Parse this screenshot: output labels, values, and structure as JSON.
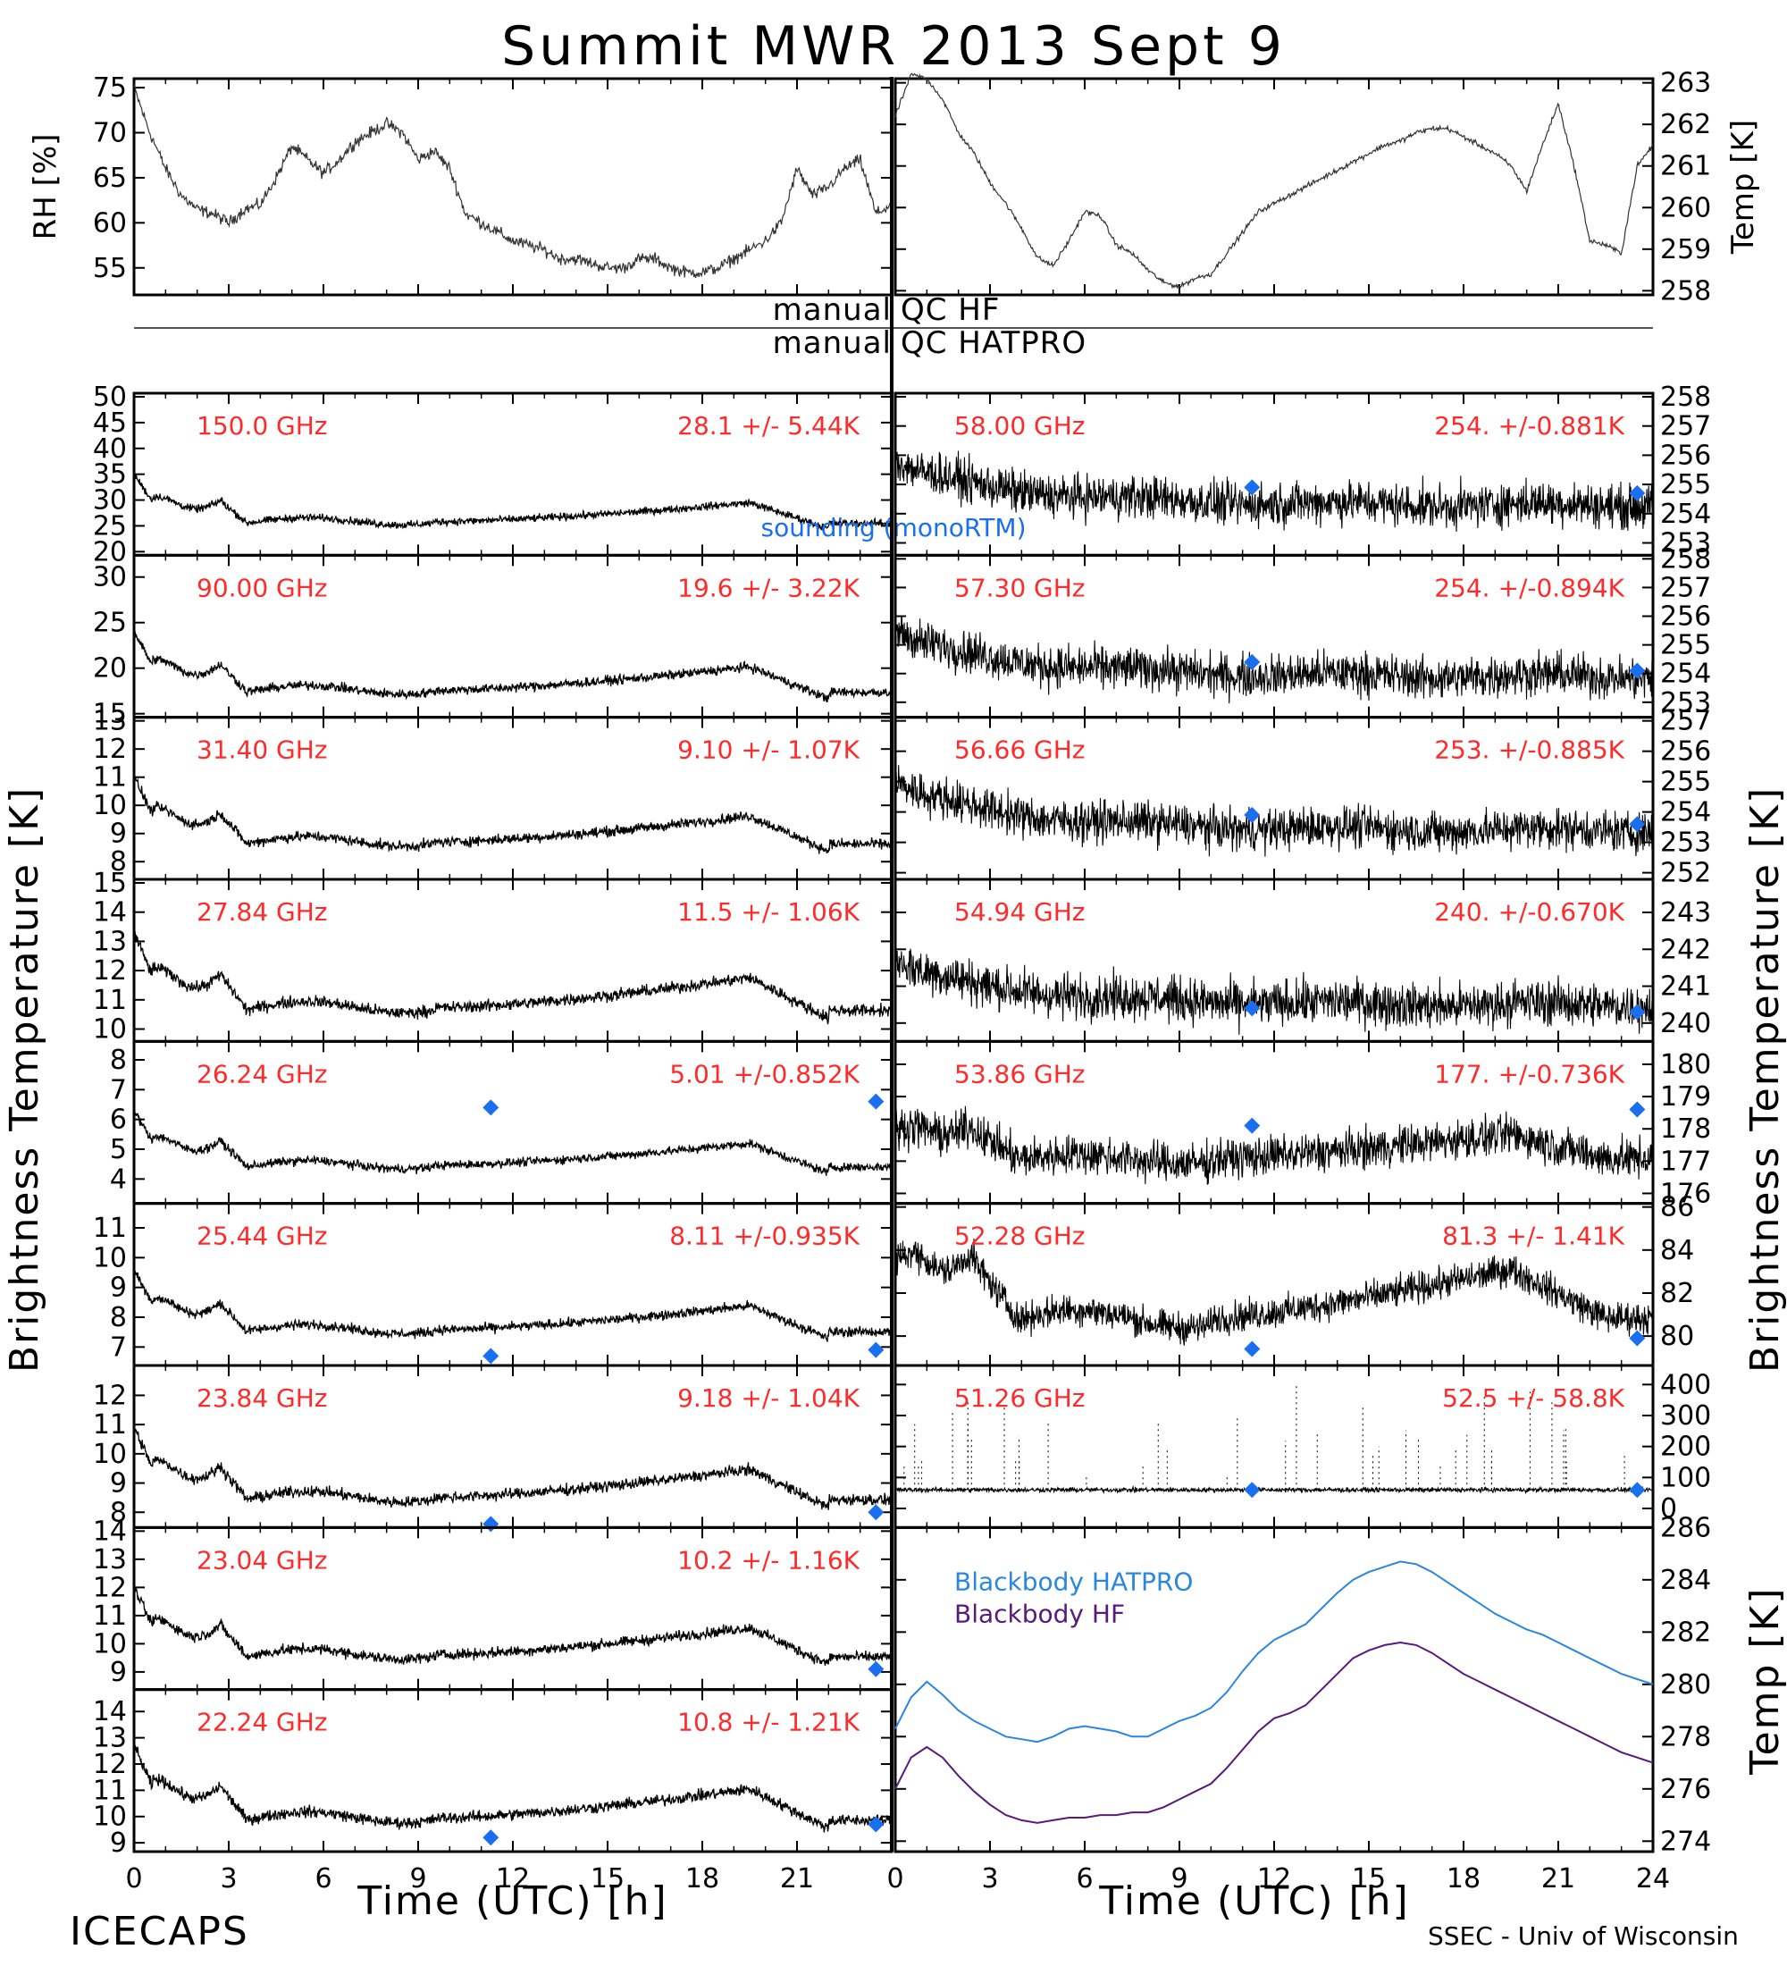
{
  "figure": {
    "title": "Summit MWR 2013 Sept  9",
    "left_ylabel": "Brightness Temperature [K]",
    "right_ylabel": "Brightness Temperature [K]",
    "qc_hf": "manual QC HF",
    "qc_hatpro": "manual QC HATPRO",
    "xlabel_left": "Time (UTC) [h]",
    "xlabel_right": "Time (UTC) [h]",
    "footer_left": "ICECAPS",
    "footer_right": "SSEC - Univ of Wisconsin",
    "colors": {
      "stat_text": "#ff2a2a",
      "sounding": "#1a6ff0",
      "bb_hatpro": "#2b86e0",
      "bb_hf": "#5a1a7a",
      "trace": "#000000"
    }
  },
  "chart_data": [
    {
      "id": "met",
      "type": "line",
      "left": {
        "ylabel": "RH [%]",
        "ylim": [
          52,
          76
        ],
        "ticks": [
          55,
          60,
          65,
          70,
          75
        ],
        "x": [
          0,
          0.5,
          1,
          1.5,
          2,
          2.5,
          3,
          3.5,
          4,
          4.5,
          5,
          5.5,
          6,
          6.5,
          7,
          7.5,
          8,
          8.5,
          9,
          9.5,
          10,
          10.5,
          11,
          11.5,
          12,
          12.5,
          13,
          13.5,
          14,
          14.5,
          15,
          15.5,
          16,
          16.5,
          17,
          17.5,
          18,
          18.5,
          19,
          19.5,
          20,
          20.5,
          21,
          21.5,
          22,
          22.5,
          23,
          23.5,
          24
        ],
        "y": [
          75,
          70,
          66,
          63,
          61.5,
          61,
          60,
          61.5,
          62,
          65,
          68.5,
          67,
          65.5,
          67,
          69,
          70,
          71,
          70,
          67,
          68,
          66,
          61,
          60,
          59,
          58,
          57.5,
          57,
          56,
          56,
          55.5,
          55,
          55,
          56,
          56,
          55,
          54.5,
          54.5,
          55,
          56,
          57,
          58,
          60,
          66,
          63,
          64,
          66,
          67,
          61,
          62
        ]
      },
      "right": {
        "ylabel": "Temp [K]",
        "ylim": [
          257.9,
          263.1
        ],
        "ticks": [
          258,
          259,
          260,
          261,
          262,
          263
        ],
        "x": [
          0,
          0.5,
          1,
          1.5,
          2,
          2.5,
          3,
          3.5,
          4,
          4.5,
          5,
          5.5,
          6,
          6.5,
          7,
          7.5,
          8,
          8.5,
          9,
          9.5,
          10,
          10.5,
          11,
          11.5,
          12,
          12.5,
          13,
          13.5,
          14,
          14.5,
          15,
          15.5,
          16,
          16.5,
          17,
          17.5,
          18,
          18.5,
          19,
          19.5,
          20,
          20.5,
          21,
          21.5,
          22,
          22.5,
          23,
          23.5,
          24
        ],
        "y": [
          262.2,
          263.2,
          263.1,
          262.6,
          261.8,
          261.3,
          260.6,
          260.1,
          259.5,
          258.8,
          258.6,
          259.2,
          259.9,
          259.8,
          259.1,
          258.9,
          258.5,
          258.2,
          258.1,
          258.3,
          258.4,
          258.9,
          259.4,
          259.9,
          260.1,
          260.3,
          260.5,
          260.7,
          260.9,
          261.1,
          261.3,
          261.5,
          261.6,
          261.8,
          261.9,
          261.9,
          261.7,
          261.5,
          261.3,
          261.0,
          260.4,
          261.5,
          262.5,
          261.0,
          259.2,
          259.1,
          258.9,
          261.0,
          261.5
        ]
      }
    },
    {
      "id": "left-channels",
      "type": "line",
      "xlabel": "Time (UTC) [h]",
      "xlim": [
        0,
        24
      ],
      "xticks": [
        0,
        3,
        6,
        9,
        12,
        15,
        18,
        21
      ],
      "sounding_label": "sounding (monoRTM)",
      "panels": [
        {
          "freq": "150.0 GHz",
          "stat": "28.1 +/-  5.44K",
          "ylim": [
            20,
            50
          ],
          "ticks": [
            20,
            25,
            30,
            35,
            40,
            45,
            50
          ],
          "base": 25,
          "amp": 10,
          "sounding": []
        },
        {
          "freq": "90.00 GHz",
          "stat": "19.6 +/-  3.22K",
          "ylim": [
            15,
            32
          ],
          "ticks": [
            15,
            20,
            25,
            30
          ],
          "base": 17,
          "amp": 7,
          "sounding": []
        },
        {
          "freq": "31.40 GHz",
          "stat": "9.10 +/- 1.07K",
          "ylim": [
            7.5,
            13
          ],
          "ticks": [
            8,
            9,
            10,
            11,
            12,
            13
          ],
          "base": 8.5,
          "amp": 2.5,
          "sounding": []
        },
        {
          "freq": "27.84 GHz",
          "stat": "11.5 +/- 1.06K",
          "ylim": [
            9.7,
            15
          ],
          "ticks": [
            10,
            11,
            12,
            13,
            14,
            15
          ],
          "base": 10.5,
          "amp": 2.8,
          "sounding": []
        },
        {
          "freq": "26.24 GHz",
          "stat": "5.01 +/-0.852K",
          "ylim": [
            3.3,
            8.5
          ],
          "ticks": [
            4,
            5,
            6,
            7,
            8
          ],
          "base": 4.3,
          "amp": 2,
          "sounding": [
            [
              11.3,
              6.4
            ],
            [
              23.5,
              6.6
            ]
          ]
        },
        {
          "freq": "25.44 GHz",
          "stat": "8.11 +/-0.935K",
          "ylim": [
            6.5,
            11.7
          ],
          "ticks": [
            7,
            8,
            9,
            10,
            11
          ],
          "base": 7.4,
          "amp": 2.2,
          "sounding": [
            [
              11.3,
              6.7
            ],
            [
              23.5,
              6.9
            ]
          ]
        },
        {
          "freq": "23.84 GHz",
          "stat": "9.18 +/- 1.04K",
          "ylim": [
            7.6,
            12.9
          ],
          "ticks": [
            8,
            9,
            10,
            11,
            12
          ],
          "base": 8.3,
          "amp": 2.6,
          "sounding": [
            [
              11.3,
              7.6
            ],
            [
              23.5,
              8
            ]
          ]
        },
        {
          "freq": "23.04 GHz",
          "stat": "10.2 +/- 1.16K",
          "ylim": [
            8.5,
            14
          ],
          "ticks": [
            9,
            10,
            11,
            12,
            13,
            14
          ],
          "base": 9.4,
          "amp": 2.6,
          "sounding": [
            [
              23.5,
              9.1
            ]
          ]
        },
        {
          "freq": "22.24 GHz",
          "stat": "10.8 +/- 1.21K",
          "ylim": [
            8.8,
            14.7
          ],
          "ticks": [
            9,
            10,
            11,
            12,
            13,
            14
          ],
          "base": 9.7,
          "amp": 3,
          "sounding": [
            [
              11.3,
              9.2
            ],
            [
              23.5,
              9.7
            ]
          ]
        }
      ]
    },
    {
      "id": "right-channels",
      "type": "line",
      "xlabel": "Time (UTC) [h]",
      "xlim": [
        0,
        24
      ],
      "xticks": [
        0,
        3,
        6,
        9,
        12,
        15,
        18,
        21,
        24
      ],
      "panels": [
        {
          "freq": "58.00 GHz",
          "stat": "254. +/-0.881K",
          "ylim": [
            252.7,
            258
          ],
          "ticks": [
            253,
            254,
            255,
            256,
            257,
            258
          ],
          "base": 254.3,
          "amp": 1.5,
          "noise": 0.6,
          "shape": "decay",
          "sounding": [
            [
              11.3,
              254.9
            ],
            [
              23.5,
              254.7
            ]
          ]
        },
        {
          "freq": "57.30 GHz",
          "stat": "254. +/-0.894K",
          "ylim": [
            252.6,
            258
          ],
          "ticks": [
            253,
            254,
            255,
            256,
            257,
            258
          ],
          "base": 253.9,
          "amp": 1.6,
          "noise": 0.6,
          "shape": "decay",
          "sounding": [
            [
              11.3,
              254.4
            ],
            [
              23.5,
              254.1
            ]
          ]
        },
        {
          "freq": "56.66 GHz",
          "stat": "253. +/-0.885K",
          "ylim": [
            251.9,
            257
          ],
          "ticks": [
            252,
            253,
            254,
            255,
            256,
            257
          ],
          "base": 253.4,
          "amp": 1.6,
          "noise": 0.55,
          "shape": "decay",
          "sounding": [
            [
              11.3,
              253.9
            ],
            [
              23.5,
              253.6
            ]
          ]
        },
        {
          "freq": "54.94 GHz",
          "stat": "240. +/-0.670K",
          "ylim": [
            239.6,
            243.8
          ],
          "ticks": [
            240,
            241,
            242,
            243
          ],
          "base": 240.5,
          "amp": 1.2,
          "noise": 0.5,
          "shape": "decay",
          "sounding": [
            [
              11.3,
              240.4
            ],
            [
              23.5,
              240.3
            ]
          ]
        },
        {
          "freq": "53.86 GHz",
          "stat": "177. +/-0.736K",
          "ylim": [
            175.8,
            180.6
          ],
          "ticks": [
            176,
            177,
            178,
            179,
            180
          ],
          "base": 176.9,
          "amp": 1.4,
          "noise": 0.5,
          "shape": "wave",
          "sounding": [
            [
              11.3,
              178.1
            ],
            [
              23.5,
              178.6
            ]
          ]
        },
        {
          "freq": "52.28 GHz",
          "stat": "81.3 +/- 1.41K",
          "ylim": [
            78.8,
            86
          ],
          "ticks": [
            80,
            82,
            84,
            86
          ],
          "base": 80.3,
          "amp": 4.2,
          "noise": 0.6,
          "shape": "wave",
          "sounding": [
            [
              11.3,
              79.4
            ],
            [
              23.5,
              79.9
            ]
          ]
        },
        {
          "freq": "51.26 GHz",
          "stat": "52.5 +/- 58.8K",
          "ylim": [
            -50,
            450
          ],
          "ticks": [
            0,
            100,
            200,
            300,
            400
          ],
          "base": 60,
          "amp": 0,
          "noise": 6,
          "shape": "spiky",
          "sounding": [
            [
              11.3,
              60
            ],
            [
              23.5,
              60
            ]
          ]
        }
      ]
    },
    {
      "id": "blackbody",
      "type": "line",
      "ylabel": "Temp [K]",
      "ylim": [
        273.6,
        286
      ],
      "ticks": [
        274,
        276,
        278,
        280,
        282,
        284,
        286
      ],
      "series": [
        {
          "name": "Blackbody HATPRO",
          "x": [
            0,
            0.5,
            1,
            1.5,
            2,
            2.5,
            3,
            3.5,
            4,
            4.5,
            5,
            5.5,
            6,
            6.5,
            7,
            7.5,
            8,
            8.5,
            9,
            9.5,
            10,
            10.5,
            11,
            11.5,
            12,
            12.5,
            13,
            13.5,
            14,
            14.5,
            15,
            15.5,
            16,
            16.5,
            17,
            17.5,
            18,
            18.5,
            19,
            19.5,
            20,
            20.5,
            21,
            21.5,
            22,
            22.5,
            23,
            23.5,
            24
          ],
          "y": [
            278.3,
            279.5,
            280.1,
            279.6,
            279.0,
            278.6,
            278.3,
            278.0,
            277.9,
            277.8,
            278.0,
            278.3,
            278.4,
            278.3,
            278.2,
            278.0,
            278.0,
            278.3,
            278.6,
            278.8,
            279.1,
            279.7,
            280.5,
            281.2,
            281.7,
            282.0,
            282.3,
            282.9,
            283.5,
            284.0,
            284.3,
            284.5,
            284.7,
            284.6,
            284.3,
            283.9,
            283.5,
            283.1,
            282.7,
            282.4,
            282.1,
            281.9,
            281.6,
            281.3,
            281.0,
            280.7,
            280.4,
            280.2,
            280.0
          ]
        },
        {
          "name": "Blackbody HF",
          "x": [
            0,
            0.5,
            1,
            1.5,
            2,
            2.5,
            3,
            3.5,
            4,
            4.5,
            5,
            5.5,
            6,
            6.5,
            7,
            7.5,
            8,
            8.5,
            9,
            9.5,
            10,
            10.5,
            11,
            11.5,
            12,
            12.5,
            13,
            13.5,
            14,
            14.5,
            15,
            15.5,
            16,
            16.5,
            17,
            17.5,
            18,
            18.5,
            19,
            19.5,
            20,
            20.5,
            21,
            21.5,
            22,
            22.5,
            23,
            23.5,
            24
          ],
          "y": [
            276.0,
            277.2,
            277.6,
            277.2,
            276.5,
            275.9,
            275.4,
            275.0,
            274.8,
            274.7,
            274.8,
            274.9,
            274.9,
            275.0,
            275.0,
            275.1,
            275.1,
            275.3,
            275.6,
            275.9,
            276.2,
            276.8,
            277.5,
            278.2,
            278.7,
            278.9,
            279.2,
            279.8,
            280.4,
            281.0,
            281.3,
            281.5,
            281.6,
            281.5,
            281.2,
            280.8,
            280.4,
            280.1,
            279.8,
            279.5,
            279.2,
            278.9,
            278.6,
            278.3,
            278.0,
            277.7,
            277.4,
            277.2,
            277.0
          ]
        }
      ]
    }
  ]
}
